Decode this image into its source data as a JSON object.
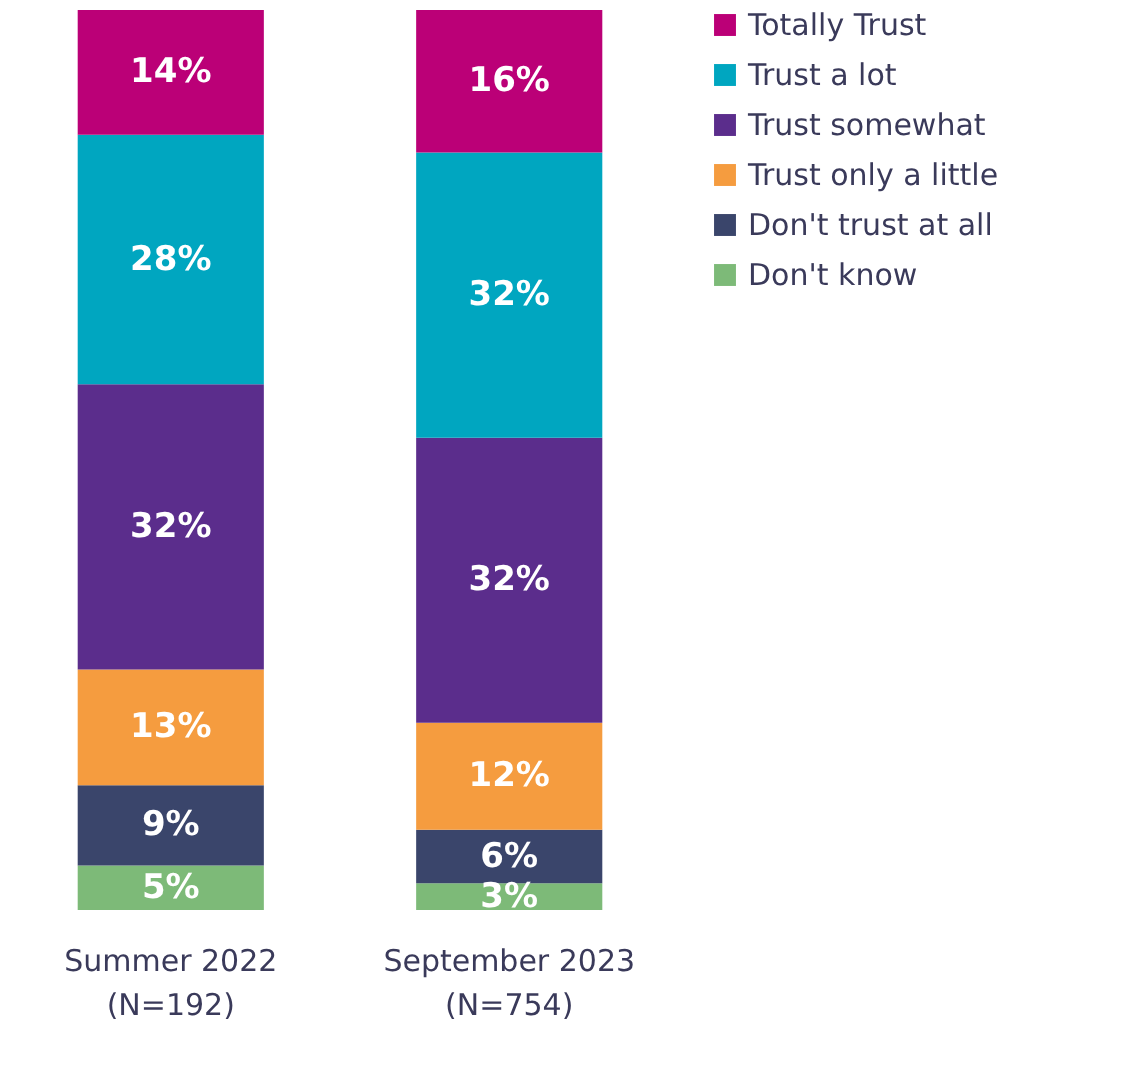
{
  "chart_data": {
    "type": "bar",
    "stacked": true,
    "legend": "right",
    "categories": [
      "Summer 2022\n(N=192)",
      "September 2023\n(N=754)"
    ],
    "series": [
      {
        "name": "Don't know",
        "color": "#7dba78",
        "values": [
          5,
          3
        ],
        "value_labels": [
          "5%",
          "3%"
        ]
      },
      {
        "name": "Don't trust at all",
        "color": "#3a456b",
        "values": [
          9,
          6
        ],
        "value_labels": [
          "9%",
          "6%"
        ]
      },
      {
        "name": "Trust only a little",
        "color": "#f59c3f",
        "values": [
          13,
          12
        ],
        "value_labels": [
          "13%",
          "12%"
        ]
      },
      {
        "name": "Trust somewhat",
        "color": "#5b2d8c",
        "values": [
          32,
          32
        ],
        "value_labels": [
          "32%",
          "32%"
        ]
      },
      {
        "name": "Trust a lot",
        "color": "#00a6c0",
        "values": [
          28,
          32
        ],
        "value_labels": [
          "28%",
          "32%"
        ]
      },
      {
        "name": "Totally Trust",
        "color": "#bb0077",
        "values": [
          14,
          16
        ],
        "value_labels": [
          "14%",
          "16%"
        ]
      }
    ]
  }
}
